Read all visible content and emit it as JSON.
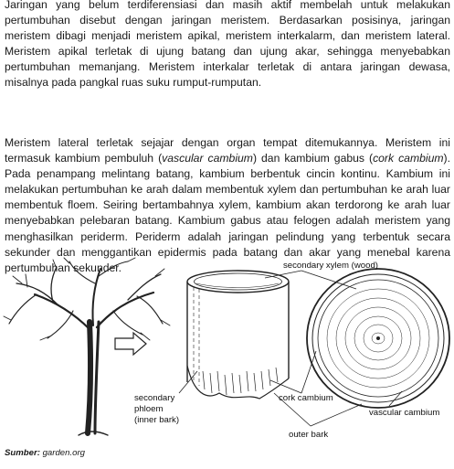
{
  "paragraph1": "Jaringan yang belum terdiferensiasi dan masih aktif membelah untuk melakukan pertumbuhan disebut dengan jaringan meristem. Berdasarkan posisinya, jaringan meristem dibagi menjadi meristem apikal, meristem interkalarm, dan meristem lateral. Meristem apikal terletak di ujung batang dan ujung akar, sehingga menyebabkan pertumbuhan memanjang. Meristem interkalar terletak di antara jaringan dewasa, misalnya pada pangkal ruas suku rumput-rumputan.",
  "paragraph2": {
    "part1": "Meristem lateral terletak sejajar dengan organ tempat ditemukannya. Meristem ini termasuk kambium pembuluh (",
    "term1": "vascular cambium",
    "part2": ") dan kambium gabus (",
    "term2": "cork cambium",
    "part3": "). Pada penampang melintang batang, kambium berbentuk cincin kontinu. Kambium ini melakukan pertumbuhan ke arah dalam membentuk xylem dan pertumbuhan ke arah luar membentuk floem. Seiring bertambahnya xylem, kambium akan terdorong ke arah luar menyebabkan pelebaran batang. Kambium gabus atau felogen adalah meristem yang menghasilkan periderm. Periderm adalah jaringan pelindung yang terbentuk secara sekunder dan menggantikan epidermis pada batang dan akar yang menebal karena pertumbuhan sekunder."
  },
  "figure": {
    "labels": {
      "secondary_xylem": "secondary xylem (wood)",
      "secondary_phloem_line1": "secondary",
      "secondary_phloem_line2": "phloem",
      "secondary_phloem_line3": "(inner bark)",
      "cork_cambium": "cork cambium",
      "vascular_cambium": "vascular cambium",
      "outer_bark": "outer bark"
    }
  },
  "source": {
    "label": "Sumber:",
    "value": "garden.org"
  }
}
